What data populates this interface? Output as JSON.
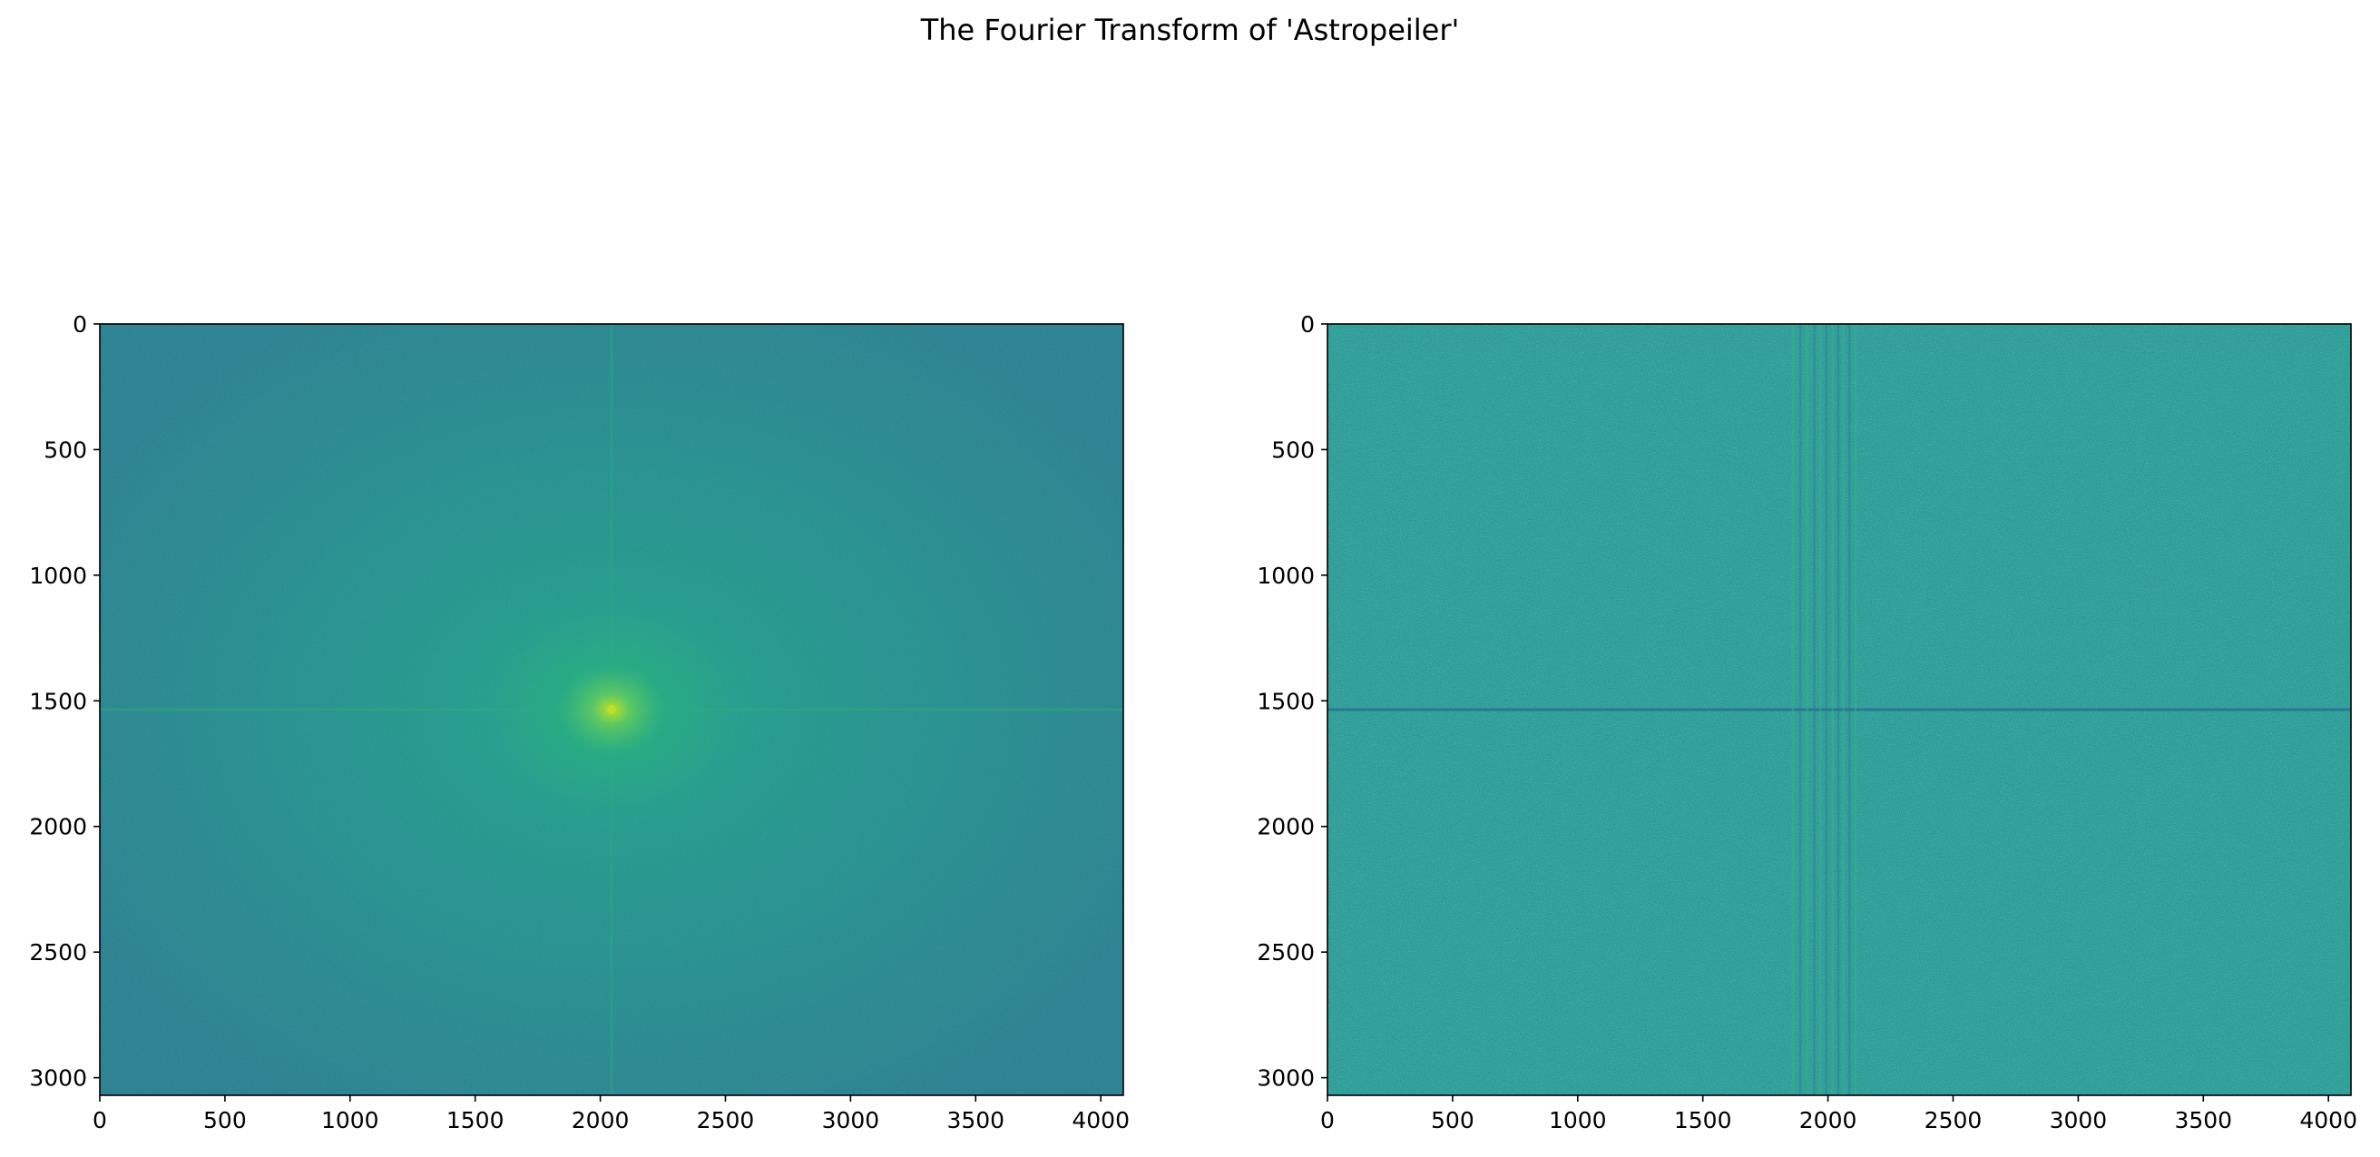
{
  "figure": {
    "suptitle": "The Fourier Transform of 'Astropeiler'"
  },
  "chart_data": [
    {
      "type": "heatmap",
      "title": "",
      "description": "log-magnitude spectrum (fft-shifted)",
      "xlabel": "",
      "ylabel": "",
      "xlim": [
        0,
        4090
      ],
      "ylim": [
        3070,
        0
      ],
      "xticks": [
        0,
        500,
        1000,
        1500,
        2000,
        2500,
        3000,
        3500,
        4000
      ],
      "yticks": [
        0,
        500,
        1000,
        1500,
        2000,
        2500,
        3000
      ],
      "center": [
        2045,
        1535
      ],
      "colormap": "viridis",
      "colors": {
        "background": "#2a7d8e",
        "mid": "#23968b",
        "peak": "#bddf26"
      }
    },
    {
      "type": "heatmap",
      "title": "",
      "description": "phase spectrum (fft-shifted)",
      "xlabel": "",
      "ylabel": "",
      "xlim": [
        0,
        4090
      ],
      "ylim": [
        3070,
        0
      ],
      "xticks": [
        0,
        500,
        1000,
        1500,
        2000,
        2500,
        3000,
        3500,
        4000
      ],
      "yticks": [
        0,
        500,
        1000,
        1500,
        2000,
        2500,
        3000
      ],
      "center": [
        2045,
        1535
      ],
      "colormap": "viridis",
      "colors": {
        "background": "#21918c",
        "dark": "#2c728e",
        "light": "#3cbb75"
      }
    }
  ]
}
